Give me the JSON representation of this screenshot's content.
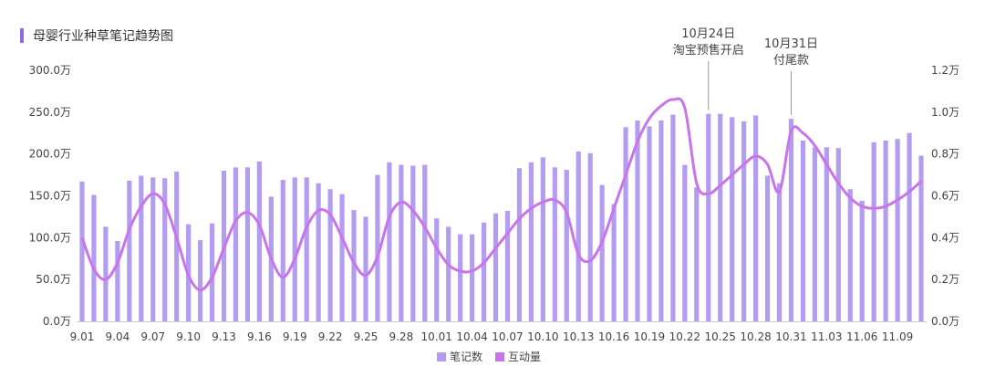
{
  "chart_data": {
    "type": "bar",
    "title": "母婴行业种草笔记趋势图",
    "x_tick_labels": [
      "9.01",
      "9.04",
      "9.07",
      "9.10",
      "9.13",
      "9.16",
      "9.19",
      "9.22",
      "9.25",
      "9.28",
      "10.01",
      "10.04",
      "10.07",
      "10.10",
      "10.13",
      "10.16",
      "10.19",
      "10.22",
      "10.25",
      "10.28",
      "10.31",
      "11.03",
      "11.06",
      "11.09"
    ],
    "categories": [
      "9.01",
      "9.02",
      "9.03",
      "9.04",
      "9.05",
      "9.06",
      "9.07",
      "9.08",
      "9.09",
      "9.10",
      "9.11",
      "9.12",
      "9.13",
      "9.14",
      "9.15",
      "9.16",
      "9.17",
      "9.18",
      "9.19",
      "9.20",
      "9.21",
      "9.22",
      "9.23",
      "9.24",
      "9.25",
      "9.26",
      "9.27",
      "9.28",
      "9.29",
      "9.30",
      "10.01",
      "10.02",
      "10.03",
      "10.04",
      "10.05",
      "10.06",
      "10.07",
      "10.08",
      "10.09",
      "10.10",
      "10.11",
      "10.12",
      "10.13",
      "10.14",
      "10.15",
      "10.16",
      "10.17",
      "10.18",
      "10.19",
      "10.20",
      "10.21",
      "10.22",
      "10.23",
      "10.24",
      "10.25",
      "10.26",
      "10.27",
      "10.28",
      "10.29",
      "10.30",
      "10.31",
      "11.01",
      "11.02",
      "11.03",
      "11.04",
      "11.05",
      "11.06",
      "11.07",
      "11.08",
      "11.09",
      "11.10",
      "11.11"
    ],
    "y_left": {
      "ticks": [
        "0.0万",
        "50.0万",
        "100.0万",
        "150.0万",
        "200.0万",
        "250.0万",
        "300.0万"
      ],
      "max": 300
    },
    "y_right": {
      "ticks": [
        "0.0万",
        "0.2万",
        "0.4万",
        "0.6万",
        "0.8万",
        "1.0万",
        "1.2万"
      ],
      "max": 1.2
    },
    "series": [
      {
        "name": "笔记数",
        "type": "bar",
        "axis": "left",
        "color": "#b39df0",
        "values": [
          167,
          151,
          113,
          96,
          168,
          174,
          172,
          171,
          179,
          116,
          97,
          117,
          180,
          184,
          184,
          191,
          149,
          169,
          172,
          172,
          165,
          158,
          152,
          133,
          125,
          175,
          190,
          187,
          186,
          187,
          123,
          113,
          104,
          104,
          118,
          129,
          132,
          183,
          190,
          196,
          184,
          181,
          203,
          201,
          163,
          140,
          232,
          240,
          233,
          240,
          247,
          187,
          160,
          248,
          248,
          244,
          239,
          246,
          174,
          165,
          242,
          216,
          208,
          208,
          207,
          158,
          144,
          214,
          216,
          218,
          225,
          198
        ]
      },
      {
        "name": "互动量",
        "type": "line",
        "axis": "right",
        "color": "#c975ea",
        "values": [
          0.4,
          0.25,
          0.2,
          0.28,
          0.44,
          0.55,
          0.61,
          0.56,
          0.4,
          0.22,
          0.15,
          0.21,
          0.35,
          0.48,
          0.52,
          0.46,
          0.3,
          0.21,
          0.3,
          0.45,
          0.53,
          0.51,
          0.4,
          0.28,
          0.22,
          0.31,
          0.5,
          0.57,
          0.53,
          0.45,
          0.35,
          0.27,
          0.24,
          0.24,
          0.28,
          0.35,
          0.42,
          0.49,
          0.54,
          0.57,
          0.58,
          0.52,
          0.32,
          0.29,
          0.38,
          0.54,
          0.7,
          0.86,
          0.97,
          1.03,
          1.06,
          1.02,
          0.66,
          0.61,
          0.65,
          0.7,
          0.75,
          0.79,
          0.75,
          0.62,
          0.91,
          0.9,
          0.84,
          0.75,
          0.66,
          0.59,
          0.55,
          0.54,
          0.55,
          0.58,
          0.62,
          0.67
        ]
      }
    ],
    "annotations": [
      {
        "index": 53,
        "lines": [
          "10月24日",
          "淘宝预售开启"
        ]
      },
      {
        "index": 60,
        "lines": [
          "10月31日",
          "付尾款"
        ]
      }
    ],
    "legend": [
      "笔记数",
      "互动量"
    ],
    "legend_position": "bottom-center",
    "grid": false
  }
}
